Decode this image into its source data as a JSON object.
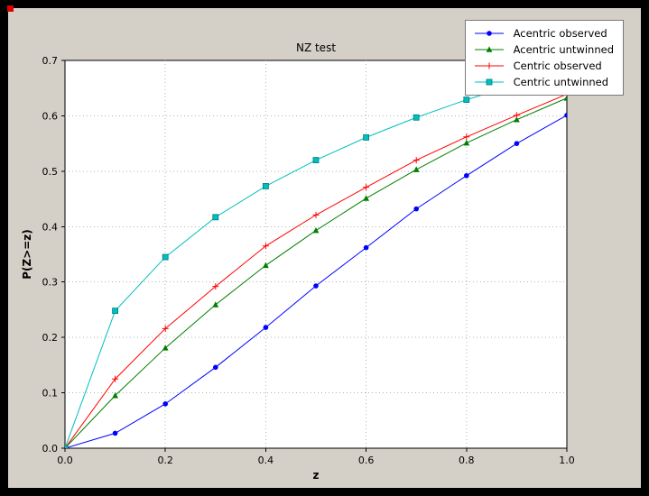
{
  "window": {
    "bg": "#000000",
    "figure_bg": "#d4d0c8"
  },
  "chart_data": {
    "type": "line",
    "title": "NZ test",
    "xlabel": "z",
    "ylabel": "P(Z>=z)",
    "xlim": [
      0.0,
      1.0
    ],
    "ylim": [
      0.0,
      0.7
    ],
    "xticks": [
      0.0,
      0.2,
      0.4,
      0.6,
      0.8,
      1.0
    ],
    "xtick_labels": [
      "0.0",
      "0.2",
      "0.4",
      "0.6",
      "0.8",
      "1.0"
    ],
    "yticks": [
      0.0,
      0.1,
      0.2,
      0.3,
      0.4,
      0.5,
      0.6,
      0.7
    ],
    "ytick_labels": [
      "0.0",
      "0.1",
      "0.2",
      "0.3",
      "0.4",
      "0.5",
      "0.6",
      "0.7"
    ],
    "grid": true,
    "grid_color": "#b4b4b4",
    "plot_bg": "#ffffff",
    "axis_color": "#000000",
    "legend_position": "upper right",
    "x": [
      0.0,
      0.1,
      0.2,
      0.3,
      0.4,
      0.5,
      0.6,
      0.7,
      0.8,
      0.9,
      1.0
    ],
    "series": [
      {
        "name": "Acentric observed",
        "color": "#0000ff",
        "marker": "circle",
        "values": [
          0.0,
          0.027,
          0.08,
          0.146,
          0.218,
          0.293,
          0.362,
          0.432,
          0.492,
          0.55,
          0.601
        ]
      },
      {
        "name": "Acentric untwinned",
        "color": "#007f00",
        "marker": "triangle",
        "values": [
          0.0,
          0.095,
          0.181,
          0.259,
          0.33,
          0.393,
          0.451,
          0.503,
          0.551,
          0.593,
          0.632
        ]
      },
      {
        "name": "Centric observed",
        "color": "#ff0000",
        "marker": "plus",
        "values": [
          0.0,
          0.125,
          0.216,
          0.292,
          0.365,
          0.421,
          0.471,
          0.52,
          0.562,
          0.601,
          0.639
        ]
      },
      {
        "name": "Centric untwinned",
        "color": "#00bfbf",
        "marker": "square",
        "marker_edge": "#007b7b",
        "values": [
          0.0,
          0.248,
          0.345,
          0.417,
          0.473,
          0.52,
          0.561,
          0.597,
          0.629,
          0.657,
          0.683
        ]
      }
    ]
  }
}
